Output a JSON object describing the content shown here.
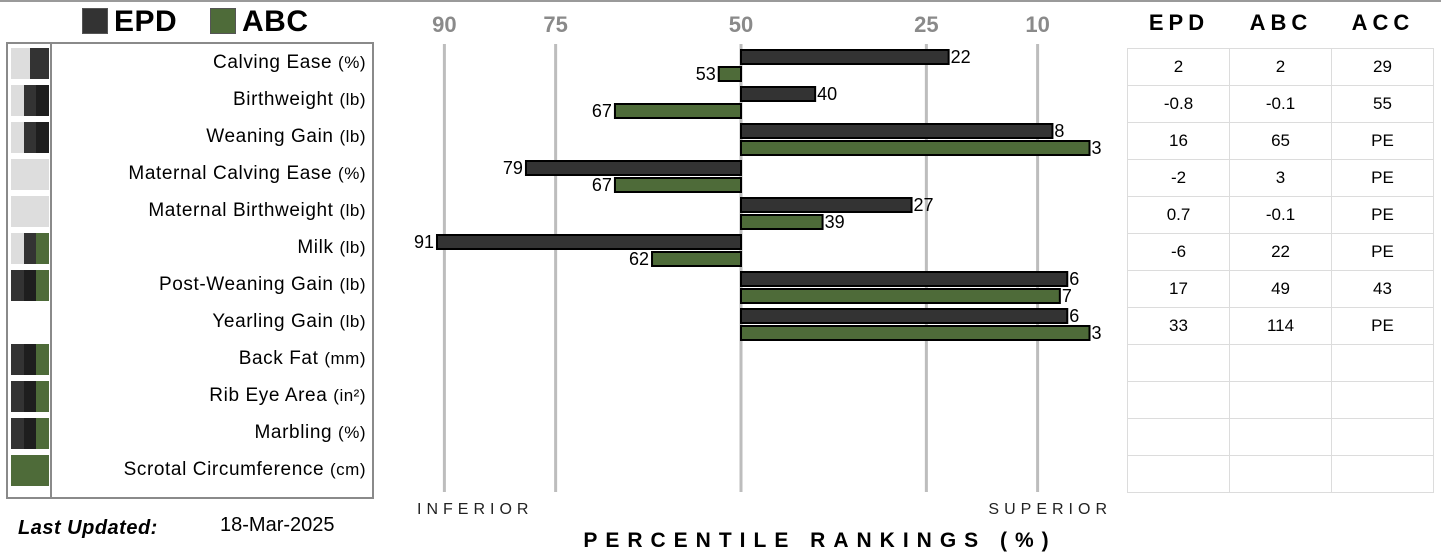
{
  "legend": {
    "epd_label": "EPD",
    "abc_label": "ABC"
  },
  "colors": {
    "epd": "#333333",
    "abc": "#4e6b39",
    "grid": "#bdbdbd"
  },
  "traits": [
    {
      "name": "Calving Ease",
      "unit": "(%)",
      "swatch": [
        "#dddddd",
        "#333333"
      ]
    },
    {
      "name": "Birthweight",
      "unit": "(lb)",
      "swatch": [
        "#dddddd",
        "#333333",
        "#1e1e1e"
      ]
    },
    {
      "name": "Weaning Gain",
      "unit": "(lb)",
      "swatch": [
        "#dddddd",
        "#333333",
        "#1e1e1e"
      ]
    },
    {
      "name": "Maternal Calving Ease",
      "unit": "(%)",
      "swatch": [
        "#dddddd"
      ]
    },
    {
      "name": "Maternal Birthweight",
      "unit": "(lb)",
      "swatch": [
        "#dddddd"
      ]
    },
    {
      "name": "Milk",
      "unit": "(lb)",
      "swatch": [
        "#dddddd",
        "#333333",
        "#4e6b39"
      ]
    },
    {
      "name": "Post-Weaning Gain",
      "unit": "(lb)",
      "swatch": [
        "#333333",
        "#1e1e1e",
        "#4e6b39"
      ]
    },
    {
      "name": "Yearling Gain",
      "unit": "(lb)",
      "swatch": [
        "#ffffff"
      ]
    },
    {
      "name": "Back Fat",
      "unit": "(mm)",
      "swatch": [
        "#333333",
        "#1e1e1e",
        "#4e6b39"
      ]
    },
    {
      "name": "Rib Eye Area",
      "unit": "(in²)",
      "swatch": [
        "#333333",
        "#1e1e1e",
        "#4e6b39"
      ]
    },
    {
      "name": "Marbling",
      "unit": "(%)",
      "swatch": [
        "#333333",
        "#1e1e1e",
        "#4e6b39"
      ]
    },
    {
      "name": "Scrotal Circumference",
      "unit": "(cm)",
      "swatch": [
        "#4e6b39"
      ]
    }
  ],
  "updated": {
    "label": "Last Updated:",
    "value": "18-Mar-2025"
  },
  "chart_data": {
    "type": "bar",
    "orientation": "horizontal",
    "xlabel": "PERCENTILE RANKINGS (%)",
    "left_label": "INFERIOR",
    "right_label": "SUPERIOR",
    "axis_ticks": [
      90,
      75,
      50,
      25,
      10
    ],
    "xlim": [
      95,
      7
    ],
    "reference": 50,
    "grid": true,
    "categories": [
      "Calving Ease",
      "Birthweight",
      "Weaning Gain",
      "Maternal Calving Ease",
      "Maternal Birthweight",
      "Milk",
      "Post-Weaning Gain",
      "Yearling Gain",
      "Back Fat",
      "Rib Eye Area",
      "Marbling",
      "Scrotal Circumference"
    ],
    "series": [
      {
        "name": "EPD",
        "values": [
          22,
          40,
          8,
          79,
          27,
          91,
          6,
          6,
          null,
          null,
          null,
          null
        ]
      },
      {
        "name": "ABC",
        "values": [
          53,
          67,
          3,
          67,
          39,
          62,
          7,
          3,
          null,
          null,
          null,
          null
        ]
      }
    ]
  },
  "table": {
    "headers": [
      "EPD",
      "ABC",
      "ACC"
    ],
    "rows": [
      [
        "2",
        "2",
        "29"
      ],
      [
        "-0.8",
        "-0.1",
        "55"
      ],
      [
        "16",
        "65",
        "PE"
      ],
      [
        "-2",
        "3",
        "PE"
      ],
      [
        "0.7",
        "-0.1",
        "PE"
      ],
      [
        "-6",
        "22",
        "PE"
      ],
      [
        "17",
        "49",
        "43"
      ],
      [
        "33",
        "114",
        "PE"
      ],
      [
        "",
        "",
        ""
      ],
      [
        "",
        "",
        ""
      ],
      [
        "",
        "",
        ""
      ],
      [
        "",
        "",
        ""
      ]
    ]
  }
}
